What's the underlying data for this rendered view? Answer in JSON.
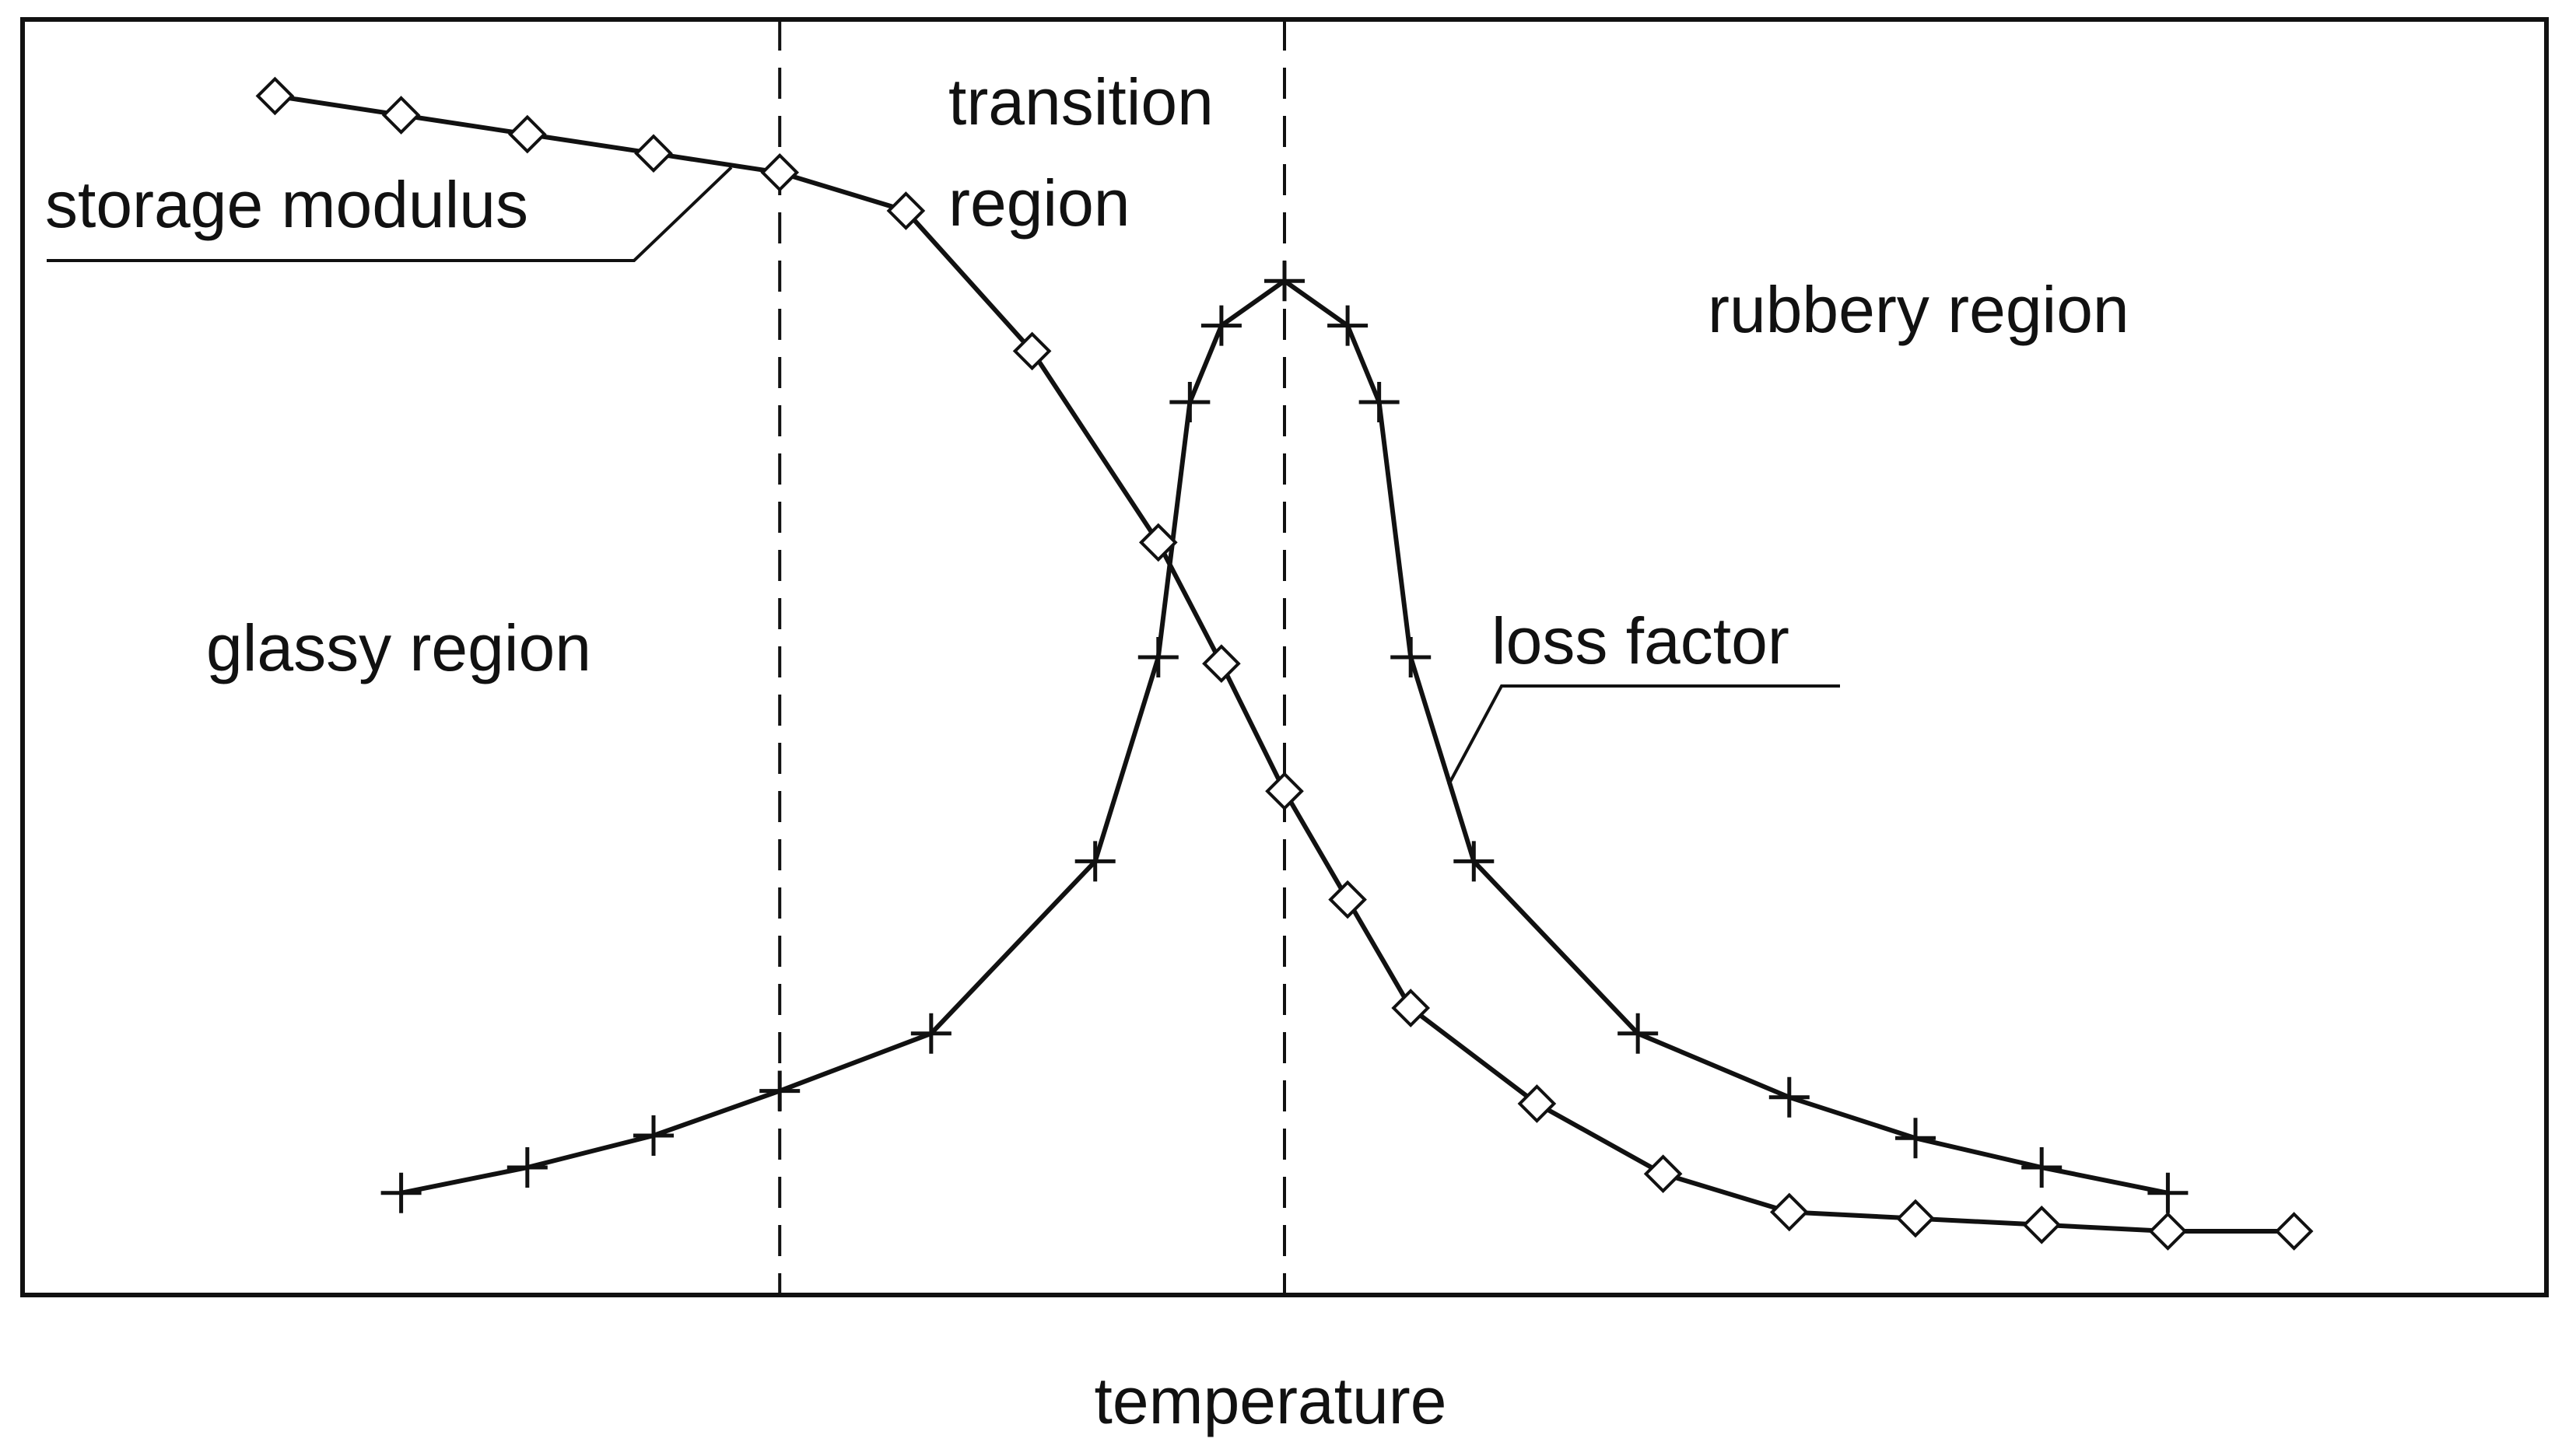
{
  "chart_data": {
    "type": "line",
    "title": "",
    "xlabel": "temperature",
    "ylabel": "",
    "axes_ticks": false,
    "grid": false,
    "xlim": [
      0,
      20
    ],
    "ylim": [
      0,
      10
    ],
    "x_reference_lines": [
      6,
      10
    ],
    "regions": [
      {
        "name": "glassy",
        "label": "glassy region"
      },
      {
        "name": "transition",
        "label": [
          "transition",
          "region"
        ]
      },
      {
        "name": "rubbery",
        "label": "rubbery region"
      }
    ],
    "series": [
      {
        "name": "storage modulus",
        "label": "storage modulus",
        "marker": "diamond",
        "x": [
          2,
          3,
          4,
          5,
          6,
          7,
          8,
          9,
          9.5,
          10,
          10.5,
          11,
          12,
          13,
          14,
          15,
          16,
          17,
          18
        ],
        "y": [
          9.4,
          9.25,
          9.1,
          8.95,
          8.8,
          8.5,
          7.4,
          5.9,
          4.95,
          3.95,
          3.1,
          2.25,
          1.5,
          0.95,
          0.65,
          0.6,
          0.55,
          0.5,
          0.5
        ]
      },
      {
        "name": "loss factor",
        "label": "loss factor",
        "marker": "plus",
        "x": [
          3,
          4,
          5,
          6,
          7.2,
          8.5,
          9,
          9.25,
          9.5,
          10,
          10.5,
          10.75,
          11,
          11.5,
          12.8,
          14,
          15,
          16,
          17
        ],
        "y": [
          0.8,
          1,
          1.25,
          1.6,
          2.05,
          3.4,
          5,
          7,
          7.6,
          7.95,
          7.6,
          7,
          5,
          3.4,
          2.05,
          1.55,
          1.23,
          1,
          0.8
        ]
      }
    ]
  }
}
